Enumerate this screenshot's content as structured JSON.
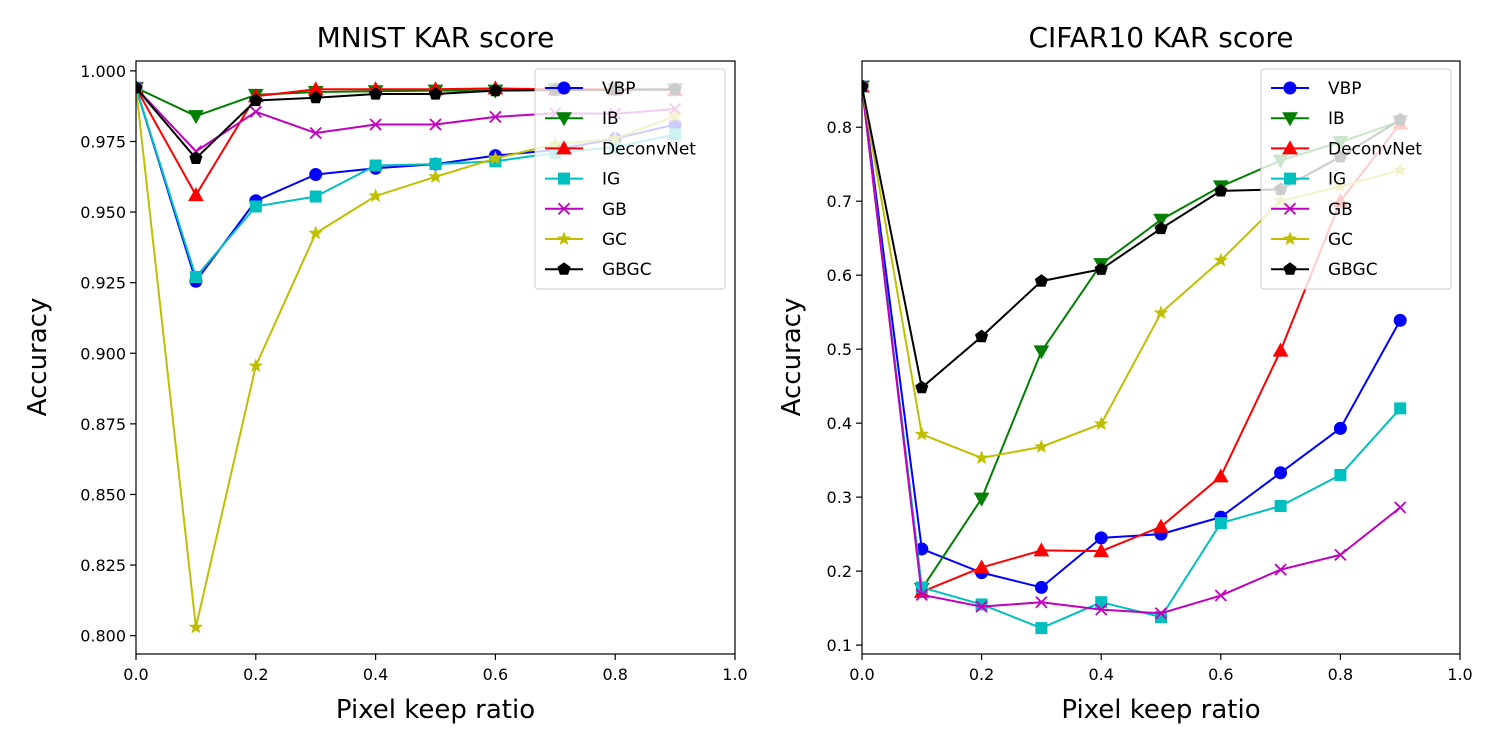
{
  "chart_data": [
    {
      "type": "line",
      "title": "MNIST KAR score",
      "xlabel": "Pixel keep ratio",
      "ylabel": "Accuracy",
      "xlim": [
        0.0,
        1.0
      ],
      "ylim": [
        0.7935,
        1.0035
      ],
      "xticks": [
        0.0,
        0.2,
        0.4,
        0.6,
        0.8,
        1.0
      ],
      "xtick_labels": [
        "0.0",
        "0.2",
        "0.4",
        "0.6",
        "0.8",
        "1.0"
      ],
      "yticks": [
        0.8,
        0.825,
        0.85,
        0.875,
        0.9,
        0.925,
        0.95,
        0.975,
        1.0
      ],
      "ytick_labels": [
        "0.800",
        "0.825",
        "0.850",
        "0.875",
        "0.900",
        "0.925",
        "0.950",
        "0.975",
        "1.000"
      ],
      "grid": false,
      "legend_position": "top-right",
      "x": [
        0.0,
        0.1,
        0.2,
        0.3,
        0.4,
        0.5,
        0.6,
        0.7,
        0.8,
        0.9
      ],
      "series": [
        {
          "name": "VBP",
          "color": "#0000ff",
          "marker": "circle",
          "values": [
            0.994,
            0.9255,
            0.954,
            0.9633,
            0.9655,
            0.967,
            0.97,
            0.972,
            0.976,
            0.981
          ]
        },
        {
          "name": "IB",
          "color": "#007f00",
          "marker": "triangle-down",
          "values": [
            0.994,
            0.984,
            0.9915,
            0.9925,
            0.9928,
            0.993,
            0.993,
            0.9935,
            0.9935,
            0.9935
          ]
        },
        {
          "name": "DeconvNet",
          "color": "#ff0000",
          "marker": "triangle-up",
          "values": [
            0.994,
            0.956,
            0.991,
            0.9935,
            0.9935,
            0.9935,
            0.9938,
            0.9935,
            0.9935,
            0.9932
          ]
        },
        {
          "name": "IG",
          "color": "#00bfbf",
          "marker": "square",
          "values": [
            0.994,
            0.927,
            0.952,
            0.9555,
            0.9665,
            0.967,
            0.968,
            0.971,
            0.973,
            0.9775
          ]
        },
        {
          "name": "GB",
          "color": "#bf00bf",
          "marker": "x",
          "values": [
            0.994,
            0.9715,
            0.9855,
            0.978,
            0.981,
            0.981,
            0.9837,
            0.985,
            0.9848,
            0.9865
          ]
        },
        {
          "name": "GC",
          "color": "#bfbf00",
          "marker": "star",
          "values": [
            0.994,
            0.803,
            0.8955,
            0.9425,
            0.9557,
            0.9625,
            0.969,
            0.974,
            0.976,
            0.984
          ]
        },
        {
          "name": "GBGC",
          "color": "#000000",
          "marker": "pentagon",
          "values": [
            0.994,
            0.969,
            0.9895,
            0.9905,
            0.9918,
            0.9918,
            0.993,
            0.9932,
            0.9932,
            0.9935
          ]
        }
      ]
    },
    {
      "type": "line",
      "title": "CIFAR10 KAR score",
      "xlabel": "Pixel keep ratio",
      "ylabel": "Accuracy",
      "xlim": [
        0.0,
        1.0
      ],
      "ylim": [
        0.088,
        0.8895
      ],
      "xticks": [
        0.0,
        0.2,
        0.4,
        0.6,
        0.8,
        1.0
      ],
      "xtick_labels": [
        "0.0",
        "0.2",
        "0.4",
        "0.6",
        "0.8",
        "1.0"
      ],
      "yticks": [
        0.1,
        0.2,
        0.3,
        0.4,
        0.5,
        0.6,
        0.7,
        0.8
      ],
      "ytick_labels": [
        "0.1",
        "0.2",
        "0.3",
        "0.4",
        "0.5",
        "0.6",
        "0.7",
        "0.8"
      ],
      "grid": false,
      "legend_position": "top-right",
      "x": [
        0.0,
        0.1,
        0.2,
        0.3,
        0.4,
        0.5,
        0.6,
        0.7,
        0.8,
        0.9
      ],
      "series": [
        {
          "name": "VBP",
          "color": "#0000ff",
          "marker": "circle",
          "values": [
            0.855,
            0.23,
            0.198,
            0.178,
            0.245,
            0.25,
            0.273,
            0.333,
            0.393,
            0.539
          ]
        },
        {
          "name": "IB",
          "color": "#007f00",
          "marker": "triangle-down",
          "values": [
            0.855,
            0.176,
            0.298,
            0.497,
            0.615,
            0.675,
            0.72,
            0.755,
            0.78,
            0.808
          ]
        },
        {
          "name": "DeconvNet",
          "color": "#ff0000",
          "marker": "triangle-up",
          "values": [
            0.855,
            0.172,
            0.205,
            0.228,
            0.227,
            0.26,
            0.328,
            0.498,
            0.7,
            0.805
          ]
        },
        {
          "name": "IG",
          "color": "#00bfbf",
          "marker": "square",
          "values": [
            0.855,
            0.178,
            0.155,
            0.123,
            0.158,
            0.138,
            0.265,
            0.288,
            0.33,
            0.42
          ]
        },
        {
          "name": "GB",
          "color": "#bf00bf",
          "marker": "x",
          "values": [
            0.855,
            0.168,
            0.152,
            0.158,
            0.148,
            0.143,
            0.167,
            0.202,
            0.222,
            0.286
          ]
        },
        {
          "name": "GC",
          "color": "#bfbf00",
          "marker": "star",
          "values": [
            0.855,
            0.385,
            0.353,
            0.368,
            0.399,
            0.549,
            0.62,
            0.7,
            0.72,
            0.742
          ]
        },
        {
          "name": "GBGC",
          "color": "#000000",
          "marker": "pentagon",
          "values": [
            0.855,
            0.448,
            0.517,
            0.592,
            0.608,
            0.663,
            0.714,
            0.716,
            0.76,
            0.81
          ]
        }
      ]
    }
  ]
}
